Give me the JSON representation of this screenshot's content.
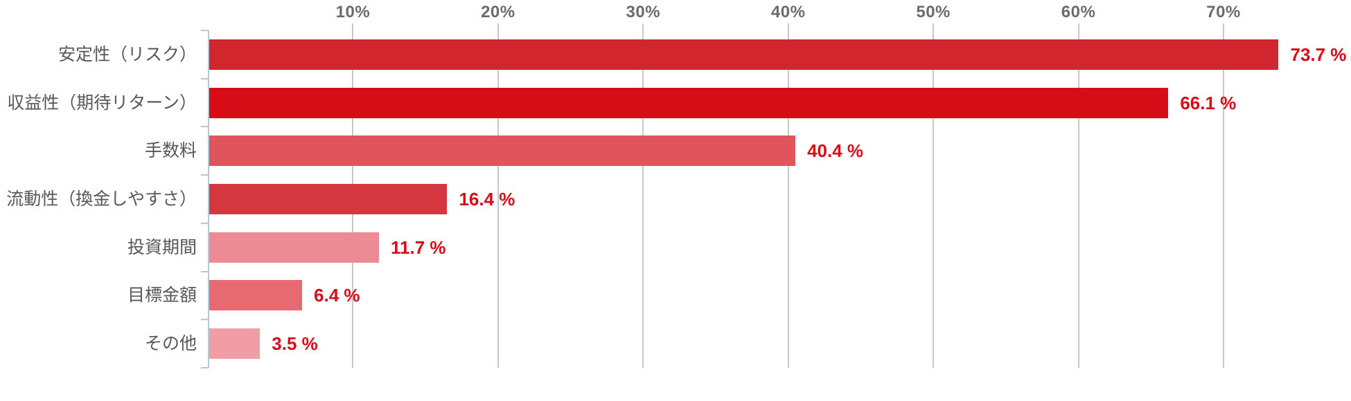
{
  "chart_data": {
    "type": "bar",
    "orientation": "horizontal",
    "title": "",
    "xlabel": "",
    "ylabel": "",
    "categories": [
      "安定性（リスク）",
      "収益性（期待リターン）",
      "手数料",
      "流動性（換金しやすさ）",
      "投資期間",
      "目標金額",
      "その他"
    ],
    "values": [
      73.7,
      66.1,
      40.4,
      16.4,
      11.7,
      6.4,
      3.5
    ],
    "value_labels": [
      "73.7 %",
      "66.1 %",
      "40.4 %",
      "16.4 %",
      "11.7 %",
      "6.4 %",
      "3.5 %"
    ],
    "bar_colors": [
      "#d2262f",
      "#d60c17",
      "#e0545e",
      "#d53741",
      "#ec8b93",
      "#e76a73",
      "#f19da5"
    ],
    "x_ticks": [
      "10%",
      "20%",
      "30%",
      "40%",
      "50%",
      "60%",
      "70%"
    ],
    "x_tick_values": [
      10,
      20,
      30,
      40,
      50,
      60,
      70
    ],
    "xlim": [
      0,
      78.8
    ],
    "grid": true,
    "legend": false,
    "background": "#ffffff",
    "value_label_color": "#d70c17",
    "tick_label_color": "#6b6b6b",
    "category_label_color": "#575757",
    "gridline_color": "#c7c7c7",
    "axis_line_color": "#b5c8d4"
  }
}
